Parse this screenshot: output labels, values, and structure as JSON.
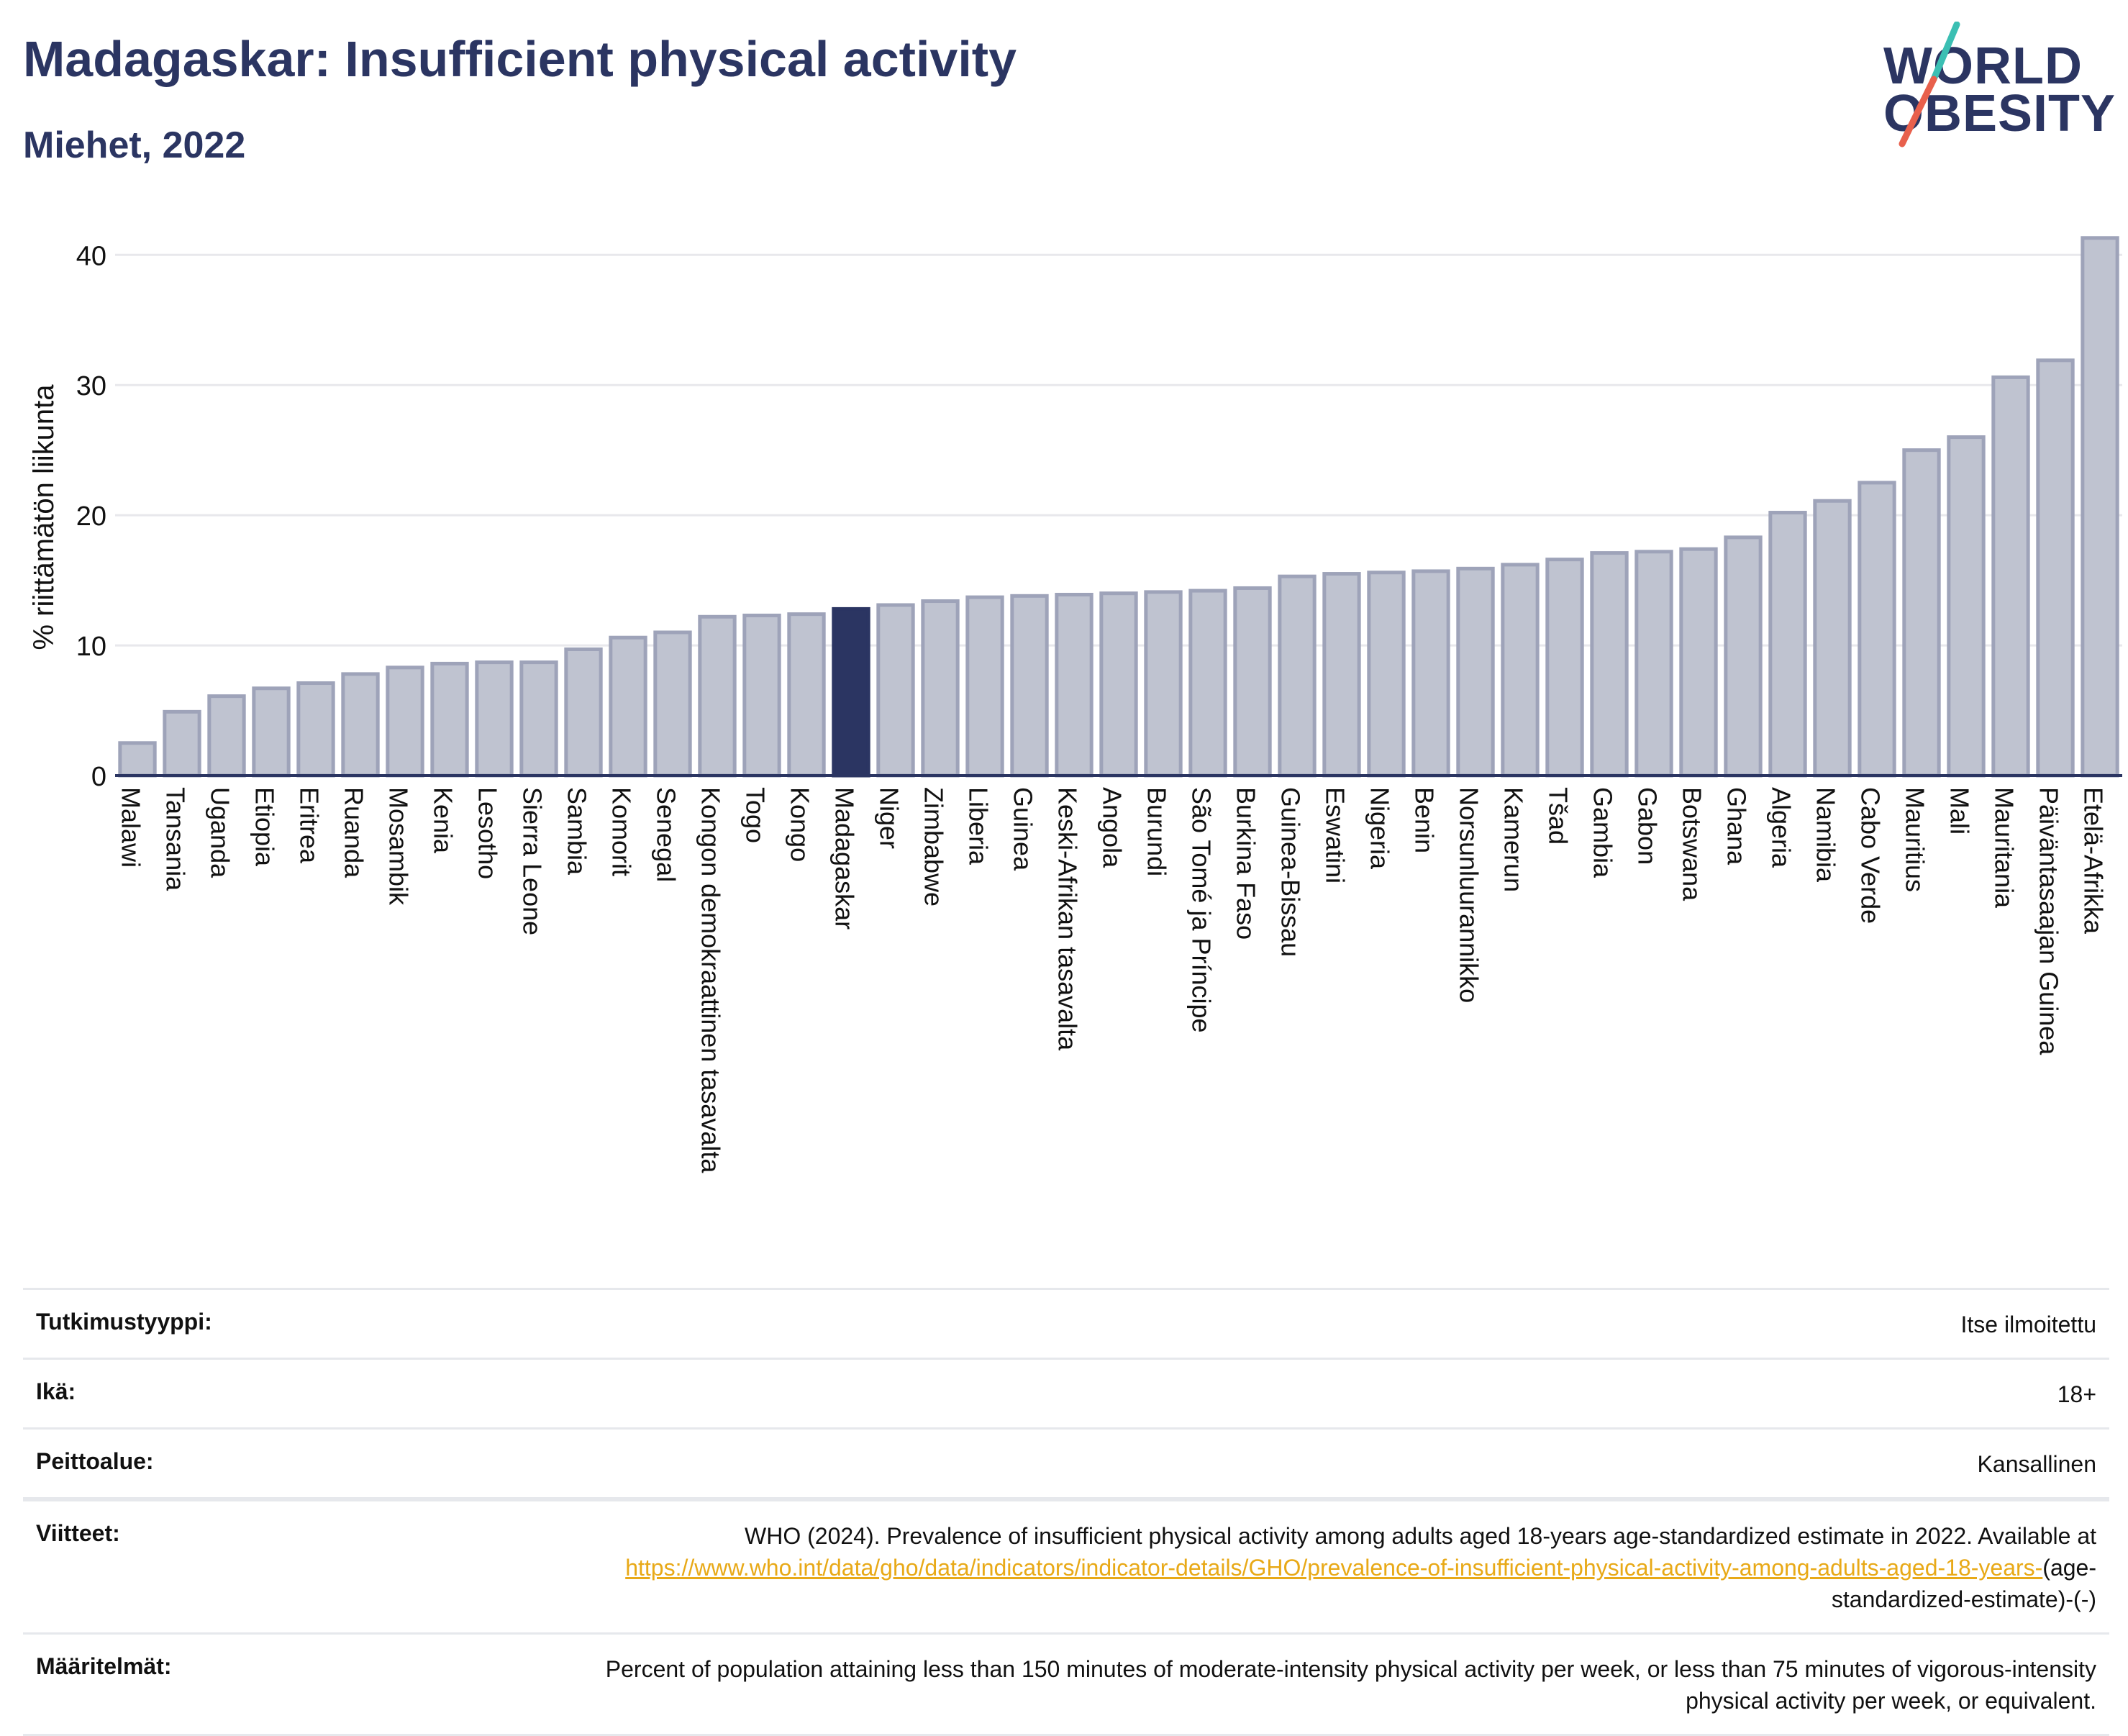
{
  "header": {
    "title": "Madagaskar: Insufficient physical activity",
    "subtitle": "Miehet, 2022"
  },
  "logo": {
    "line1": "WORLD",
    "line2": "OBESITY",
    "colors": {
      "text": "#2b3562",
      "slash_top": "#3bbfb3",
      "slash_bottom": "#e8604c"
    }
  },
  "colors": {
    "bar": "#bfc3d0",
    "bar_border": "#9ea3b9",
    "highlight": "#2b3562",
    "grid": "#e8e8ec",
    "axis": "#2b3562",
    "link": "#e8a917"
  },
  "chart_data": {
    "type": "bar",
    "ylabel": "% riittämätön liikunta",
    "xlabel": "",
    "ylim": [
      0,
      43
    ],
    "yticks": [
      0,
      10,
      20,
      30,
      40
    ],
    "grid": true,
    "highlight": "Madagaskar",
    "categories": [
      "Malawi",
      "Tansania",
      "Uganda",
      "Etiopia",
      "Eritrea",
      "Ruanda",
      "Mosambik",
      "Kenia",
      "Lesotho",
      "Sierra Leone",
      "Sambia",
      "Komorit",
      "Senegal",
      "Kongon demokraattinen tasavalta",
      "Togo",
      "Kongo",
      "Madagaskar",
      "Niger",
      "Zimbabwe",
      "Liberia",
      "Guinea",
      "Keski-Afrikan tasavalta",
      "Angola",
      "Burundi",
      "São Tomé ja Príncipe",
      "Burkina Faso",
      "Guinea-Bissau",
      "Eswatini",
      "Nigeria",
      "Benin",
      "Norsunluurannikko",
      "Kamerun",
      "Tšad",
      "Gambia",
      "Gabon",
      "Botswana",
      "Ghana",
      "Algeria",
      "Namibia",
      "Cabo Verde",
      "Mauritius",
      "Mali",
      "Mauritania",
      "Päiväntasaajan Guinea",
      "Etelä-Afrikka"
    ],
    "values": [
      2.5,
      4.9,
      6.1,
      6.7,
      7.1,
      7.8,
      8.3,
      8.6,
      8.7,
      8.7,
      9.7,
      10.6,
      11.0,
      12.2,
      12.3,
      12.4,
      12.8,
      13.1,
      13.4,
      13.7,
      13.8,
      13.9,
      14.0,
      14.1,
      14.2,
      14.4,
      15.3,
      15.5,
      15.6,
      15.7,
      15.9,
      16.2,
      16.6,
      17.1,
      17.2,
      17.4,
      18.3,
      20.2,
      21.1,
      22.5,
      25.0,
      26.0,
      30.6,
      31.9,
      41.3
    ]
  },
  "info": {
    "rows": [
      {
        "label": "Tutkimustyyppi:",
        "value": "Itse ilmoitettu"
      },
      {
        "label": "Ikä:",
        "value": "18+"
      },
      {
        "label": "Peittoalue:",
        "value": "Kansallinen"
      }
    ],
    "references": {
      "label": "Viitteet:",
      "text": "WHO (2024). Prevalence of insufficient physical activity among adults aged 18-years age-standardized estimate in 2022. Available at",
      "link": "https://www.who.int/data/gho/data/indicators/indicator-details/GHO/prevalence-of-insufficient-physical-activity-among-adults-aged-18-years-",
      "suffix": "(age-standardized-estimate)-(-)"
    },
    "definitions": {
      "label": "Määritelmät:",
      "value": "Percent of population attaining less than 150 minutes of moderate-intensity physical activity per week, or less than 75 minutes of vigorous-intensity physical activity per week, or equivalent."
    }
  }
}
